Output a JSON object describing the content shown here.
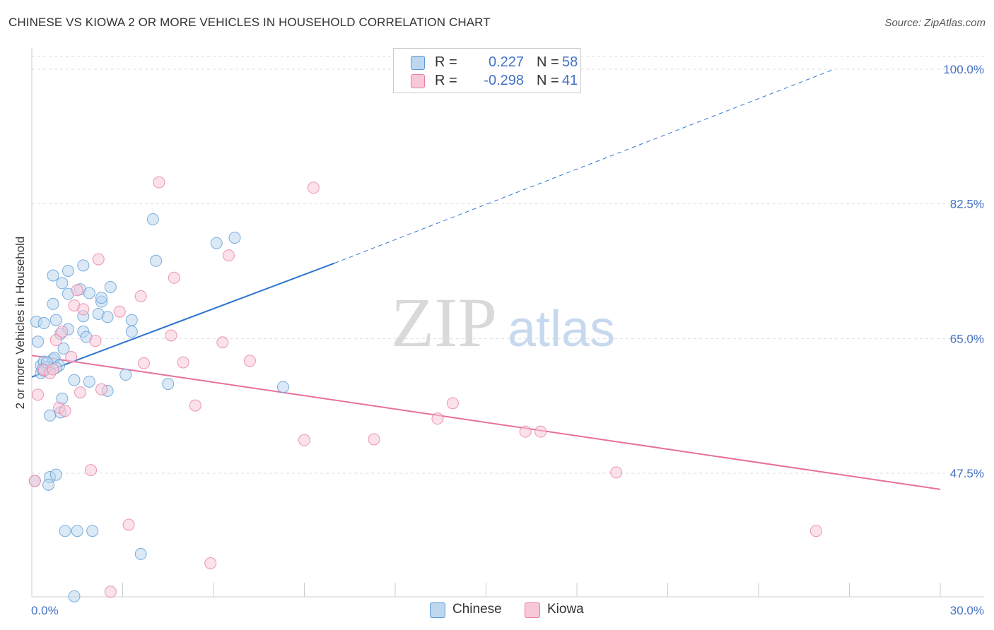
{
  "title": "CHINESE VS KIOWA 2 OR MORE VEHICLES IN HOUSEHOLD CORRELATION CHART",
  "source": "Source: ZipAtlas.com",
  "watermark": {
    "zip": "ZIP",
    "atlas": "atlas"
  },
  "colors": {
    "chinese": "#5b9bd5",
    "chinese_fill": "#bdd7ee",
    "chinese_line": "#2e75cf",
    "kiowa": "#e87ea1",
    "kiowa_fill": "#f8c8d8",
    "kiowa_line": "#e8709a",
    "axis_text": "#4472c4",
    "grid": "#dddddd"
  },
  "legend": {
    "rows": [
      {
        "r_label": "R =",
        "r_value": "0.227",
        "n_label": "N =",
        "n_value": "58"
      },
      {
        "r_label": "R =",
        "r_value": "-0.298",
        "n_label": "N =",
        "n_value": "41"
      }
    ]
  },
  "bottom_legend": {
    "chinese": "Chinese",
    "kiowa": "Kiowa"
  },
  "chart_data": {
    "type": "scatter",
    "title": "CHINESE VS KIOWA 2 OR MORE VEHICLES IN HOUSEHOLD CORRELATION CHART",
    "xlabel": "",
    "ylabel": "2 or more Vehicles in Household",
    "xlim": [
      0,
      30
    ],
    "ylim": [
      30,
      100
    ],
    "x_tick_labels": [
      "0.0%",
      "30.0%"
    ],
    "y_ticks": [
      47.5,
      65.0,
      82.5,
      100.0
    ],
    "y_tick_labels": [
      "47.5%",
      "65.0%",
      "82.5%",
      "100.0%"
    ],
    "grid": true,
    "legend_position": "top-center",
    "series": [
      {
        "name": "Chinese",
        "points": [
          [
            0.15,
            67.2
          ],
          [
            0.2,
            64.6
          ],
          [
            0.3,
            61.5
          ],
          [
            0.4,
            60.8
          ],
          [
            0.4,
            62.0
          ],
          [
            0.4,
            67.0
          ],
          [
            0.5,
            61.3
          ],
          [
            0.6,
            55.0
          ],
          [
            0.6,
            47.0
          ],
          [
            0.7,
            62.3
          ],
          [
            0.7,
            69.5
          ],
          [
            0.7,
            73.2
          ],
          [
            0.75,
            62.5
          ],
          [
            0.8,
            67.4
          ],
          [
            0.9,
            61.5
          ],
          [
            0.8,
            61.2
          ],
          [
            0.8,
            47.3
          ],
          [
            0.95,
            55.4
          ],
          [
            1.0,
            57.2
          ],
          [
            1.0,
            72.2
          ],
          [
            1.05,
            63.7
          ],
          [
            1.1,
            40.0
          ],
          [
            1.2,
            66.2
          ],
          [
            1.2,
            73.8
          ],
          [
            1.2,
            70.8
          ],
          [
            0.95,
            65.6
          ],
          [
            1.4,
            59.6
          ],
          [
            1.5,
            40.0
          ],
          [
            1.6,
            71.4
          ],
          [
            1.7,
            67.9
          ],
          [
            1.7,
            65.9
          ],
          [
            1.7,
            74.5
          ],
          [
            1.8,
            65.2
          ],
          [
            1.9,
            70.9
          ],
          [
            1.9,
            59.4
          ],
          [
            2.0,
            40.0
          ],
          [
            2.2,
            68.2
          ],
          [
            2.3,
            69.8
          ],
          [
            2.3,
            70.3
          ],
          [
            2.5,
            58.2
          ],
          [
            2.5,
            67.8
          ],
          [
            2.6,
            71.7
          ],
          [
            3.1,
            60.3
          ],
          [
            3.3,
            65.9
          ],
          [
            3.3,
            67.4
          ],
          [
            3.6,
            37.0
          ],
          [
            4.0,
            80.5
          ],
          [
            4.1,
            75.1
          ],
          [
            4.5,
            59.1
          ],
          [
            6.1,
            77.4
          ],
          [
            6.7,
            78.1
          ],
          [
            8.3,
            58.7
          ],
          [
            1.4,
            31.5
          ],
          [
            0.55,
            46.0
          ],
          [
            0.3,
            60.5
          ],
          [
            0.35,
            61.0
          ],
          [
            0.5,
            61.9
          ],
          [
            0.1,
            46.5
          ]
        ]
      },
      {
        "name": "Kiowa",
        "points": [
          [
            0.1,
            46.5
          ],
          [
            0.2,
            57.7
          ],
          [
            0.4,
            60.9
          ],
          [
            0.6,
            60.5
          ],
          [
            0.7,
            61.0
          ],
          [
            0.8,
            64.8
          ],
          [
            0.9,
            56.0
          ],
          [
            1.0,
            65.9
          ],
          [
            1.1,
            55.6
          ],
          [
            1.3,
            62.6
          ],
          [
            1.4,
            69.3
          ],
          [
            1.6,
            58.0
          ],
          [
            1.7,
            68.8
          ],
          [
            1.5,
            71.3
          ],
          [
            1.95,
            47.9
          ],
          [
            2.1,
            64.7
          ],
          [
            2.2,
            75.3
          ],
          [
            2.3,
            58.4
          ],
          [
            2.6,
            32.1
          ],
          [
            2.9,
            68.5
          ],
          [
            3.2,
            40.8
          ],
          [
            3.6,
            70.5
          ],
          [
            3.7,
            61.8
          ],
          [
            4.2,
            85.3
          ],
          [
            4.6,
            65.4
          ],
          [
            4.7,
            72.9
          ],
          [
            5.0,
            61.9
          ],
          [
            5.4,
            56.3
          ],
          [
            5.9,
            35.8
          ],
          [
            6.3,
            64.5
          ],
          [
            6.5,
            75.8
          ],
          [
            7.2,
            62.1
          ],
          [
            9.0,
            51.8
          ],
          [
            9.3,
            84.6
          ],
          [
            11.3,
            51.9
          ],
          [
            13.4,
            54.6
          ],
          [
            13.9,
            56.6
          ],
          [
            16.3,
            52.9
          ],
          [
            16.8,
            52.9
          ],
          [
            19.3,
            47.6
          ],
          [
            25.9,
            40.0
          ]
        ]
      }
    ],
    "trend_lines": [
      {
        "series": "Chinese",
        "x": [
          0,
          10
        ],
        "y": [
          60.0,
          74.8
        ],
        "dashed_extension_x": [
          10,
          26.5
        ],
        "dashed_extension_y": [
          74.8,
          100.0
        ]
      },
      {
        "series": "Kiowa",
        "x": [
          0,
          30
        ],
        "y": [
          62.8,
          45.4
        ]
      }
    ]
  }
}
